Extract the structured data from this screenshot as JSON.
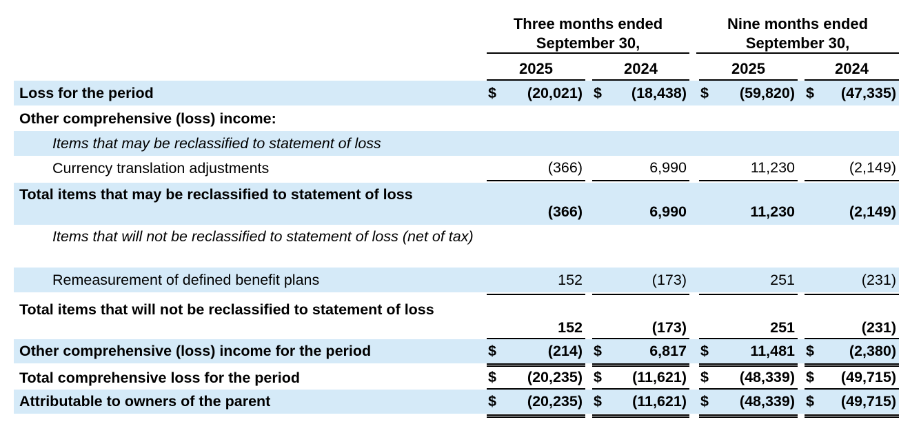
{
  "header": {
    "group1": [
      "Three months ended",
      "September 30,"
    ],
    "group2": [
      "Nine months ended",
      "September 30,"
    ],
    "years": [
      "2025",
      "2024",
      "2025",
      "2024"
    ]
  },
  "rows": [
    {
      "label": "Loss for the period",
      "dollar": "$",
      "values": [
        "(20,021)",
        "(18,438)",
        "(59,820)",
        "(47,335)"
      ]
    },
    {
      "label": "Other comprehensive (loss) income:"
    },
    {
      "label": "Items that may be reclassified to statement of loss"
    },
    {
      "label": "Currency translation adjustments",
      "values": [
        "(366)",
        "6,990",
        "11,230",
        "(2,149)"
      ]
    },
    {
      "label": "Total items that may be reclassified to statement of loss",
      "values": [
        "(366)",
        "6,990",
        "11,230",
        "(2,149)"
      ]
    },
    {
      "label": "Items that will not be reclassified to statement of loss (net of tax)"
    },
    {
      "label": "Remeasurement of defined benefit plans",
      "values": [
        "152",
        "(173)",
        "251",
        "(231)"
      ]
    },
    {
      "label": "Total items that will not be reclassified to statement of loss",
      "values": [
        "152",
        "(173)",
        "251",
        "(231)"
      ]
    },
    {
      "label": "Other comprehensive (loss) income for the period",
      "dollar": "$",
      "values": [
        "(214)",
        "6,817",
        "11,481",
        "(2,380)"
      ]
    },
    {
      "label": "Total comprehensive loss for the period",
      "dollar": "$",
      "values": [
        "(20,235)",
        "(11,621)",
        "(48,339)",
        "(49,715)"
      ]
    },
    {
      "label": "Attributable to owners of the parent",
      "dollar": "$",
      "values": [
        "(20,235)",
        "(11,621)",
        "(48,339)",
        "(49,715)"
      ]
    }
  ],
  "colors": {
    "band": "#d5eaf8"
  }
}
